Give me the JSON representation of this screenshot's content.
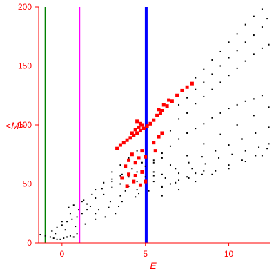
{
  "chart_data": {
    "type": "scatter",
    "xlabel": "E",
    "ylabel": "<M>",
    "xlim": [
      -1.4,
      12.5
    ],
    "ylim": [
      0,
      200
    ],
    "xticks": [
      0,
      5,
      10
    ],
    "yticks": [
      0,
      50,
      100,
      150,
      200
    ],
    "grid": false,
    "colors": {
      "axis": "#ff0000",
      "black_points": "#000000",
      "red_points": "#ff0000",
      "line_green": "#008000",
      "line_magenta": "#ff00ff",
      "line_blue": "#0000ff"
    },
    "vertical_lines": [
      {
        "x": -1.0,
        "color": "#008000"
      },
      {
        "x": 1.05,
        "color": "#ff00ff"
      },
      {
        "x": 5.05,
        "color": "#0000ff"
      }
    ],
    "series": [
      {
        "marker": "black dots",
        "color": "#000000",
        "points": [
          [
            -1.3,
            7
          ],
          [
            -1.0,
            6
          ],
          [
            -0.7,
            5
          ],
          [
            -0.5,
            4
          ],
          [
            -0.3,
            3
          ],
          [
            -0.1,
            3
          ],
          [
            0.1,
            4
          ],
          [
            0.3,
            5
          ],
          [
            0.5,
            6
          ],
          [
            0.7,
            5
          ],
          [
            0.9,
            8
          ],
          [
            -0.6,
            10
          ],
          [
            -0.3,
            13
          ],
          [
            0.0,
            15
          ],
          [
            0.3,
            18
          ],
          [
            0.6,
            20
          ],
          [
            0.9,
            22
          ],
          [
            1.2,
            25
          ],
          [
            1.5,
            28
          ],
          [
            -0.4,
            8
          ],
          [
            0.2,
            11
          ],
          [
            0.8,
            14
          ],
          [
            1.4,
            16
          ],
          [
            2.0,
            20
          ],
          [
            2.6,
            22
          ],
          [
            3.2,
            25
          ],
          [
            0.0,
            18
          ],
          [
            0.5,
            25
          ],
          [
            1.0,
            28
          ],
          [
            1.5,
            33
          ],
          [
            2.0,
            38
          ],
          [
            2.5,
            41
          ],
          [
            3.0,
            47
          ],
          [
            3.5,
            50
          ],
          [
            4.0,
            56
          ],
          [
            4.5,
            60
          ],
          [
            5.0,
            65
          ],
          [
            5.5,
            68
          ],
          [
            6.0,
            72
          ],
          [
            1.2,
            35
          ],
          [
            1.8,
            41
          ],
          [
            2.4,
            46
          ],
          [
            3.0,
            52
          ],
          [
            3.6,
            58
          ],
          [
            4.2,
            63
          ],
          [
            4.8,
            68
          ],
          [
            2.0,
            25
          ],
          [
            2.8,
            30
          ],
          [
            3.6,
            35
          ],
          [
            4.4,
            39
          ],
          [
            5.2,
            44
          ],
          [
            6.0,
            47
          ],
          [
            6.8,
            51
          ],
          [
            7.6,
            55
          ],
          [
            8.4,
            58
          ],
          [
            9.2,
            61
          ],
          [
            10.0,
            66
          ],
          [
            10.8,
            70
          ],
          [
            11.6,
            74
          ],
          [
            12.3,
            80
          ],
          [
            5.5,
            52
          ],
          [
            6.2,
            55
          ],
          [
            7.0,
            59
          ],
          [
            7.8,
            63
          ],
          [
            8.6,
            67
          ],
          [
            9.4,
            72
          ],
          [
            10.2,
            75
          ],
          [
            11.0,
            78
          ],
          [
            11.8,
            81
          ],
          [
            12.4,
            84
          ],
          [
            6.0,
            48
          ],
          [
            6.5,
            50
          ],
          [
            7.0,
            53
          ],
          [
            7.5,
            56
          ],
          [
            8.0,
            59
          ],
          [
            8.5,
            61
          ],
          [
            3.0,
            60
          ],
          [
            3.5,
            66
          ],
          [
            4.0,
            72
          ],
          [
            4.5,
            78
          ],
          [
            5.5,
            70
          ],
          [
            6.0,
            76
          ],
          [
            6.5,
            82
          ],
          [
            7.0,
            88
          ],
          [
            7.5,
            93
          ],
          [
            8.0,
            97
          ],
          [
            8.5,
            101
          ],
          [
            9.0,
            106
          ],
          [
            9.5,
            110
          ],
          [
            10.0,
            114
          ],
          [
            10.5,
            117
          ],
          [
            11.0,
            120
          ],
          [
            11.5,
            122
          ],
          [
            12.0,
            125
          ],
          [
            6.0,
            58
          ],
          [
            6.8,
            63
          ],
          [
            7.6,
            68
          ],
          [
            8.4,
            73
          ],
          [
            9.2,
            78
          ],
          [
            10.0,
            83
          ],
          [
            10.8,
            88
          ],
          [
            11.6,
            93
          ],
          [
            12.4,
            98
          ],
          [
            6.5,
            95
          ],
          [
            7.0,
            105
          ],
          [
            7.5,
            110
          ],
          [
            8.0,
            118
          ],
          [
            8.5,
            124
          ],
          [
            9.0,
            130
          ],
          [
            9.5,
            136
          ],
          [
            10.0,
            142
          ],
          [
            10.5,
            148
          ],
          [
            11.0,
            154
          ],
          [
            11.5,
            160
          ],
          [
            12.0,
            165
          ],
          [
            12.4,
            168
          ],
          [
            7.0,
            117
          ],
          [
            7.5,
            123
          ],
          [
            8.0,
            130
          ],
          [
            8.5,
            136
          ],
          [
            9.0,
            143
          ],
          [
            9.5,
            150
          ],
          [
            10.0,
            157
          ],
          [
            10.5,
            163
          ],
          [
            11.0,
            170
          ],
          [
            11.5,
            176
          ],
          [
            12.0,
            183
          ],
          [
            12.3,
            190
          ],
          [
            8.0,
            140
          ],
          [
            8.5,
            147
          ],
          [
            9.0,
            155
          ],
          [
            9.5,
            162
          ],
          [
            10.0,
            170
          ],
          [
            10.5,
            177
          ],
          [
            11.0,
            185
          ],
          [
            11.5,
            192
          ],
          [
            12.0,
            198
          ],
          [
            6.0,
            40
          ],
          [
            7.0,
            45
          ],
          [
            8.0,
            52
          ],
          [
            9.0,
            58
          ],
          [
            10.0,
            63
          ],
          [
            11.0,
            69
          ],
          [
            12.0,
            74
          ],
          [
            4.5,
            45
          ],
          [
            5.5,
            57
          ],
          [
            6.5,
            66
          ],
          [
            7.5,
            74
          ],
          [
            8.5,
            84
          ],
          [
            9.5,
            92
          ],
          [
            10.5,
            100
          ],
          [
            11.5,
            108
          ],
          [
            12.4,
            115
          ],
          [
            3.5,
            40
          ],
          [
            4.0,
            48
          ],
          [
            4.5,
            52
          ],
          [
            5.0,
            56
          ],
          [
            5.5,
            60
          ],
          [
            2.0,
            45
          ],
          [
            2.5,
            51
          ],
          [
            3.0,
            54
          ],
          [
            3.5,
            57
          ],
          [
            0.4,
            30
          ],
          [
            0.7,
            32
          ],
          [
            1.3,
            36
          ],
          [
            1.7,
            31
          ],
          [
            2.2,
            28
          ],
          [
            2.9,
            35
          ],
          [
            3.4,
            31
          ],
          [
            3.8,
            44
          ],
          [
            4.6,
            42
          ]
        ]
      },
      {
        "marker": "red squares",
        "color": "#ff0000",
        "points": [
          [
            3.3,
            80
          ],
          [
            3.5,
            83
          ],
          [
            3.7,
            85
          ],
          [
            3.9,
            87
          ],
          [
            4.1,
            89
          ],
          [
            4.3,
            91
          ],
          [
            4.5,
            93
          ],
          [
            4.7,
            95
          ],
          [
            4.9,
            97
          ],
          [
            5.1,
            99
          ],
          [
            5.3,
            101
          ],
          [
            5.5,
            104
          ],
          [
            5.7,
            108
          ],
          [
            6.0,
            112
          ],
          [
            6.3,
            116
          ],
          [
            6.6,
            120
          ],
          [
            6.9,
            125
          ],
          [
            7.2,
            129
          ],
          [
            7.5,
            132
          ],
          [
            7.8,
            135
          ],
          [
            4.2,
            93
          ],
          [
            4.4,
            96
          ],
          [
            4.6,
            98
          ],
          [
            4.8,
            100
          ],
          [
            4.5,
            103
          ],
          [
            4.7,
            101
          ],
          [
            5.8,
            113
          ],
          [
            6.1,
            117
          ],
          [
            6.4,
            121
          ],
          [
            5.9,
            110
          ],
          [
            3.8,
            65
          ],
          [
            4.0,
            70
          ],
          [
            4.2,
            75
          ],
          [
            4.4,
            68
          ],
          [
            4.6,
            72
          ],
          [
            4.8,
            78
          ],
          [
            5.0,
            73
          ],
          [
            3.6,
            55
          ],
          [
            4.0,
            58
          ],
          [
            4.4,
            57
          ],
          [
            4.8,
            60
          ],
          [
            3.9,
            48
          ],
          [
            4.3,
            52
          ],
          [
            4.7,
            49
          ],
          [
            5.0,
            52
          ],
          [
            5.5,
            85
          ],
          [
            5.8,
            90
          ],
          [
            6.0,
            93
          ],
          [
            5.6,
            78
          ]
        ]
      }
    ]
  }
}
